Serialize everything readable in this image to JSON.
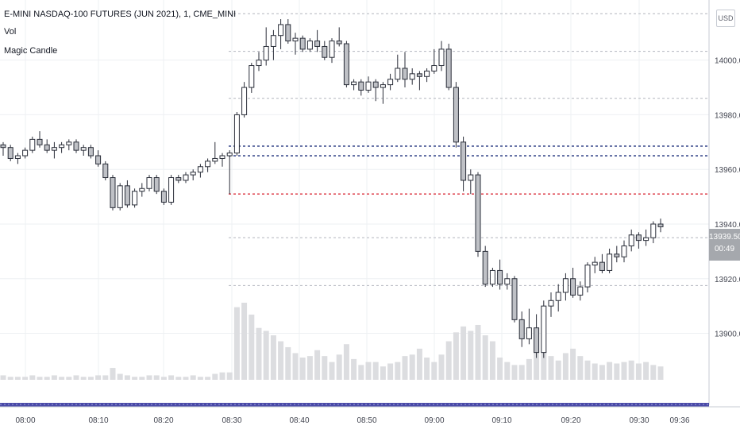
{
  "legend": {
    "symbol": "E-MINI NASDAQ-100 FUTURES (JUN 2021), 1, CME_MINI",
    "vol": "Vol",
    "indicator": "Magic Candle"
  },
  "currency": "USD",
  "last_price": {
    "value": "13939.50",
    "countdown": "00:49"
  },
  "colors": {
    "up_fill": "#ffffff",
    "down_fill": "#bfc1c6",
    "outline": "#2a2e39",
    "volume": "#dcdde0",
    "grid": "#eef0f3",
    "level_grey": "#b2b5be",
    "level_blue": "#3f4f8f",
    "level_red": "#e0525c",
    "time_bar": "#4a4aa8"
  },
  "chart_data": {
    "type": "candlestick",
    "ylim": [
      13883,
      14022
    ],
    "y_ticks": [
      "14000.00",
      "13980.00",
      "13960.00",
      "13940.00",
      "13920.00",
      "13900.00"
    ],
    "x_ticks": [
      "08:00",
      "08:10",
      "08:20",
      "08:30",
      "08:40",
      "08:50",
      "09:00",
      "09:10",
      "09:20",
      "09:30",
      "09:36"
    ],
    "grid": true,
    "levels": [
      {
        "price": 14017.0,
        "style": "grey"
      },
      {
        "price": 14003.2,
        "style": "grey"
      },
      {
        "price": 13986.0,
        "style": "grey"
      },
      {
        "price": 13968.5,
        "style": "blue"
      },
      {
        "price": 13965.0,
        "style": "blue"
      },
      {
        "price": 13951.0,
        "style": "red"
      },
      {
        "price": 13935.0,
        "style": "grey"
      },
      {
        "price": 13917.5,
        "style": "grey"
      }
    ],
    "candles": [
      [
        13969,
        13970,
        13965,
        13968
      ],
      [
        13968,
        13969,
        13963,
        13964
      ],
      [
        13964,
        13966,
        13962,
        13965
      ],
      [
        13965,
        13968,
        13964,
        13967
      ],
      [
        13967,
        13972,
        13966,
        13971
      ],
      [
        13971,
        13974,
        13968,
        13969
      ],
      [
        13969,
        13971,
        13966,
        13967
      ],
      [
        13967,
        13970,
        13964,
        13968
      ],
      [
        13968,
        13970,
        13966,
        13969
      ],
      [
        13969,
        13971,
        13967,
        13970
      ],
      [
        13970,
        13971,
        13966,
        13967
      ],
      [
        13967,
        13969,
        13965,
        13968
      ],
      [
        13968,
        13969,
        13964,
        13965
      ],
      [
        13965,
        13967,
        13961,
        13962
      ],
      [
        13962,
        13963,
        13956,
        13957
      ],
      [
        13957,
        13958,
        13945,
        13946
      ],
      [
        13946,
        13955,
        13945,
        13954
      ],
      [
        13954,
        13956,
        13946,
        13947
      ],
      [
        13947,
        13953,
        13946,
        13952
      ],
      [
        13952,
        13955,
        13950,
        13953
      ],
      [
        13953,
        13958,
        13952,
        13957
      ],
      [
        13957,
        13958,
        13951,
        13952
      ],
      [
        13952,
        13953,
        13947,
        13948
      ],
      [
        13948,
        13958,
        13947,
        13957
      ],
      [
        13957,
        13958,
        13955,
        13956
      ],
      [
        13956,
        13959,
        13955,
        13958
      ],
      [
        13958,
        13960,
        13956,
        13959
      ],
      [
        13959,
        13962,
        13957,
        13961
      ],
      [
        13961,
        13964,
        13959,
        13963
      ],
      [
        13963,
        13970,
        13962,
        13964
      ],
      [
        13964,
        13966,
        13961,
        13965
      ],
      [
        13965,
        13967,
        13951,
        13966
      ],
      [
        13966,
        13981,
        13965,
        13980
      ],
      [
        13980,
        13992,
        13979,
        13990
      ],
      [
        13990,
        13999,
        13988,
        13998
      ],
      [
        13998,
        14003,
        13996,
        14000
      ],
      [
        14000,
        14012,
        13998,
        14005
      ],
      [
        14005,
        14011,
        14000,
        14009
      ],
      [
        14009,
        14015,
        14004,
        14013
      ],
      [
        14013,
        14015,
        14006,
        14007
      ],
      [
        14007,
        14010,
        14002,
        14008
      ],
      [
        14008,
        14009,
        14003,
        14004
      ],
      [
        14004,
        14008,
        14003,
        14007
      ],
      [
        14007,
        14011,
        14003,
        14005
      ],
      [
        14005,
        14007,
        14000,
        14001
      ],
      [
        14001,
        14008,
        13999,
        14007
      ],
      [
        14007,
        14012,
        14005,
        14006
      ],
      [
        14006,
        14007,
        13990,
        13991
      ],
      [
        13991,
        13993,
        13989,
        13992
      ],
      [
        13992,
        13993,
        13987,
        13989
      ],
      [
        13989,
        13994,
        13988,
        13992
      ],
      [
        13992,
        13993,
        13985,
        13990
      ],
      [
        13990,
        13992,
        13984,
        13991
      ],
      [
        13991,
        13995,
        13989,
        13993
      ],
      [
        13993,
        14002,
        13992,
        13997
      ],
      [
        13997,
        14003,
        13990,
        13993
      ],
      [
        13993,
        13997,
        13991,
        13995
      ],
      [
        13995,
        13996,
        13989,
        13994
      ],
      [
        13994,
        13997,
        13992,
        13996
      ],
      [
        13996,
        14004,
        13995,
        13998
      ],
      [
        13998,
        14007,
        13996,
        14004
      ],
      [
        14004,
        14006,
        13989,
        13990
      ],
      [
        13990,
        13992,
        13968,
        13970
      ],
      [
        13970,
        13972,
        13952,
        13956
      ],
      [
        13956,
        13960,
        13951,
        13958
      ],
      [
        13958,
        13959,
        13928,
        13930
      ],
      [
        13930,
        13932,
        13917,
        13918
      ],
      [
        13918,
        13924,
        13917,
        13923
      ],
      [
        13923,
        13927,
        13916,
        13918
      ],
      [
        13918,
        13922,
        13916,
        13920
      ],
      [
        13920,
        13921,
        13904,
        13905
      ],
      [
        13905,
        13908,
        13895,
        13898
      ],
      [
        13898,
        13909,
        13896,
        13902
      ],
      [
        13902,
        13907,
        13891,
        13893
      ],
      [
        13893,
        13912,
        13891,
        13910
      ],
      [
        13910,
        13915,
        13906,
        13912
      ],
      [
        13912,
        13918,
        13908,
        13915
      ],
      [
        13915,
        13922,
        13912,
        13920
      ],
      [
        13920,
        13924,
        13913,
        13914
      ],
      [
        13914,
        13919,
        13912,
        13917
      ],
      [
        13917,
        13926,
        13915,
        13925
      ],
      [
        13925,
        13928,
        13922,
        13926
      ],
      [
        13926,
        13929,
        13922,
        13923
      ],
      [
        13923,
        13931,
        13922,
        13929
      ],
      [
        13929,
        13932,
        13926,
        13928
      ],
      [
        13928,
        13934,
        13926,
        13932
      ],
      [
        13932,
        13938,
        13930,
        13936
      ],
      [
        13936,
        13937,
        13931,
        13934
      ],
      [
        13934,
        13938,
        13932,
        13935
      ],
      [
        13935,
        13941,
        13933,
        13940
      ],
      [
        13940,
        13942,
        13937,
        13939
      ]
    ],
    "volumes": [
      3,
      2,
      2,
      2,
      3,
      2,
      2,
      3,
      2,
      2,
      3,
      2,
      2,
      3,
      3,
      8,
      4,
      3,
      2,
      2,
      3,
      3,
      2,
      3,
      2,
      2,
      3,
      2,
      2,
      4,
      5,
      5,
      49,
      52,
      44,
      35,
      33,
      30,
      26,
      22,
      18,
      15,
      16,
      20,
      16,
      12,
      17,
      24,
      14,
      10,
      12,
      12,
      9,
      11,
      12,
      16,
      17,
      21,
      15,
      12,
      17,
      26,
      32,
      36,
      33,
      37,
      30,
      26,
      15,
      12,
      10,
      10,
      14,
      19,
      20,
      16,
      13,
      18,
      21,
      16,
      13,
      11,
      10,
      12,
      11,
      12,
      13,
      11,
      12,
      10,
      9
    ]
  }
}
